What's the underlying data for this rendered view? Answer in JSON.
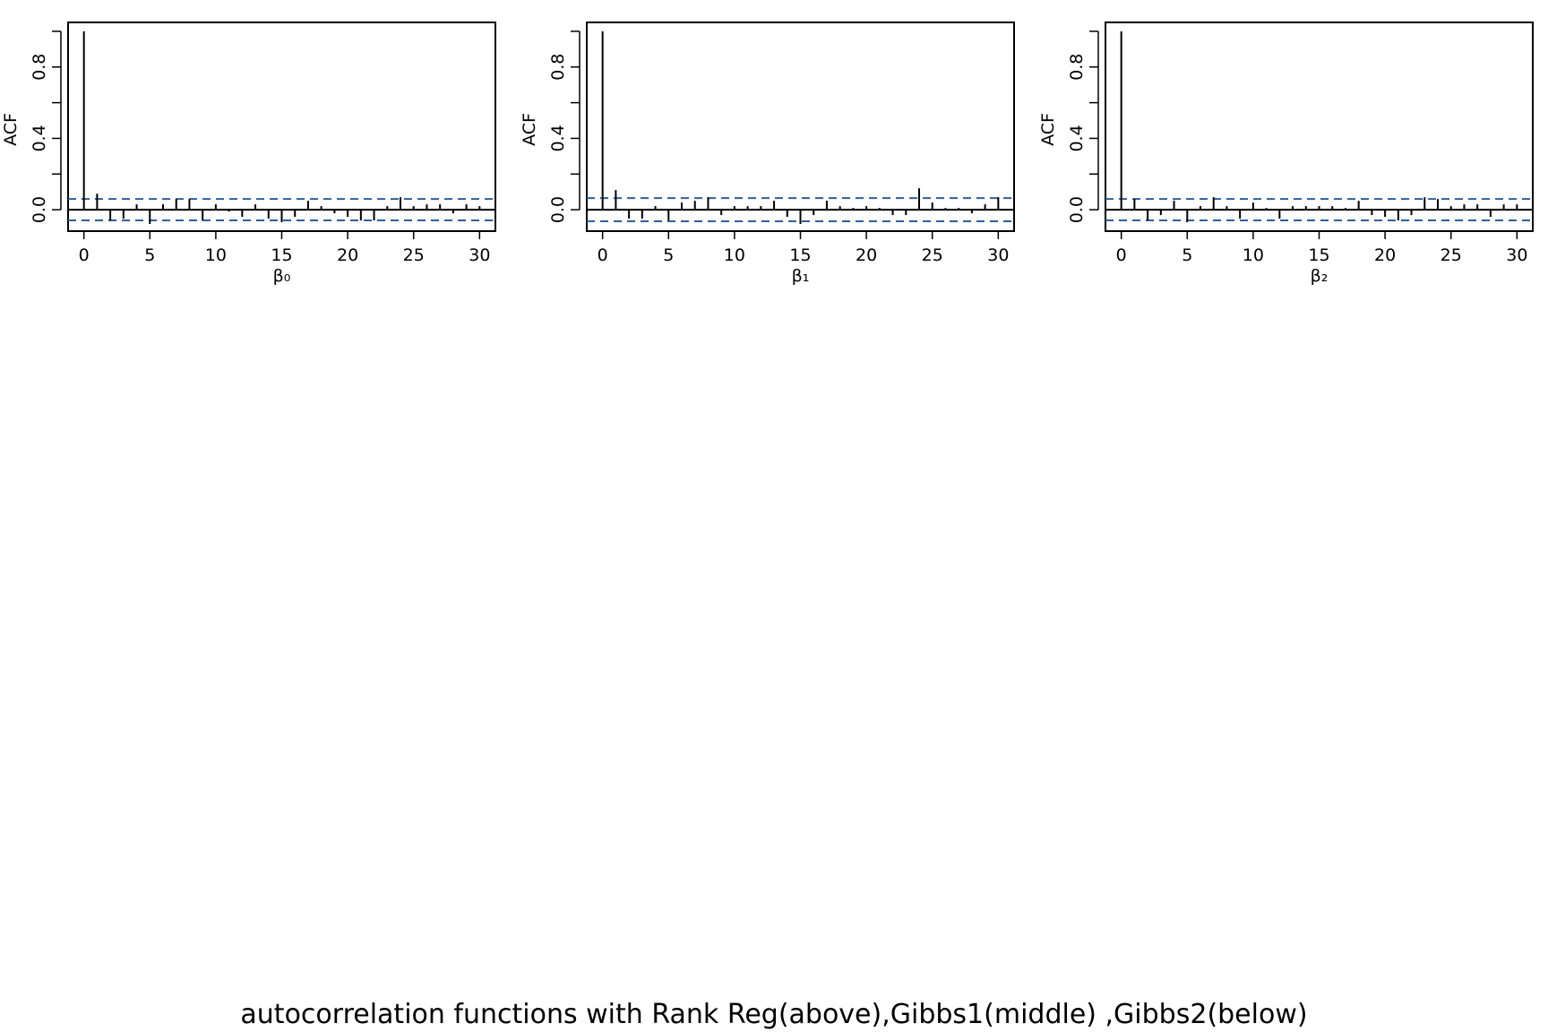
{
  "caption": "autocorrelation functions with Rank Reg(above),Gibbs1(middle) ,Gibbs2(below)",
  "colors": {
    "bar": "#000000",
    "confidence_band": "#2f5f98",
    "axis": "#000000"
  },
  "chart_data": [
    {
      "type": "bar",
      "title": "",
      "xlabel": "β₀",
      "ylabel": "ACF",
      "xlim": [
        -1.2,
        31.2
      ],
      "ylim": [
        -0.12,
        1.05
      ],
      "xticks": [
        0,
        5,
        10,
        15,
        20,
        25,
        30
      ],
      "yticks": [
        0.0,
        0.4,
        0.8
      ],
      "grid": false,
      "confidence_band": [
        -0.06,
        0.06
      ],
      "lags": [
        0,
        1,
        2,
        3,
        4,
        5,
        6,
        7,
        8,
        9,
        10,
        11,
        12,
        13,
        14,
        15,
        16,
        17,
        18,
        19,
        20,
        21,
        22,
        23,
        24,
        25,
        26,
        27,
        28,
        29,
        30
      ],
      "values": [
        1.0,
        0.09,
        -0.06,
        -0.05,
        0.03,
        -0.08,
        0.03,
        0.06,
        0.06,
        -0.06,
        0.03,
        -0.01,
        -0.04,
        0.03,
        -0.05,
        -0.07,
        -0.04,
        0.05,
        0.02,
        -0.02,
        -0.04,
        -0.06,
        -0.06,
        0.02,
        0.07,
        0.02,
        0.03,
        0.03,
        -0.02,
        0.03,
        0.02
      ]
    },
    {
      "type": "bar",
      "title": "",
      "xlabel": "β₁",
      "ylabel": "ACF",
      "xlim": [
        -1.2,
        31.2
      ],
      "ylim": [
        -0.12,
        1.05
      ],
      "xticks": [
        0,
        5,
        10,
        15,
        20,
        25,
        30
      ],
      "yticks": [
        0.0,
        0.4,
        0.8
      ],
      "grid": false,
      "confidence_band": [
        -0.065,
        0.065
      ],
      "lags": [
        0,
        1,
        2,
        3,
        4,
        5,
        6,
        7,
        8,
        9,
        10,
        11,
        12,
        13,
        14,
        15,
        16,
        17,
        18,
        19,
        20,
        21,
        22,
        23,
        24,
        25,
        26,
        27,
        28,
        29,
        30
      ],
      "values": [
        1.0,
        0.11,
        -0.05,
        -0.05,
        0.02,
        -0.06,
        0.04,
        0.05,
        0.07,
        -0.03,
        0.02,
        0.02,
        0.02,
        0.05,
        -0.04,
        -0.08,
        -0.03,
        0.05,
        0.02,
        0.01,
        0.02,
        0.01,
        -0.03,
        -0.03,
        0.12,
        0.04,
        0.01,
        0.01,
        -0.02,
        0.03,
        0.07
      ]
    },
    {
      "type": "bar",
      "title": "",
      "xlabel": "β₂",
      "ylabel": "ACF",
      "xlim": [
        -1.2,
        31.2
      ],
      "ylim": [
        -0.12,
        1.05
      ],
      "xticks": [
        0,
        5,
        10,
        15,
        20,
        25,
        30
      ],
      "yticks": [
        0.0,
        0.4,
        0.8
      ],
      "grid": false,
      "confidence_band": [
        -0.06,
        0.06
      ],
      "lags": [
        0,
        1,
        2,
        3,
        4,
        5,
        6,
        7,
        8,
        9,
        10,
        11,
        12,
        13,
        14,
        15,
        16,
        17,
        18,
        19,
        20,
        21,
        22,
        23,
        24,
        25,
        26,
        27,
        28,
        29,
        30
      ],
      "values": [
        1.0,
        0.06,
        -0.06,
        -0.03,
        0.05,
        -0.07,
        0.02,
        0.07,
        0.02,
        -0.05,
        0.04,
        0.01,
        -0.05,
        0.02,
        0.02,
        0.02,
        0.02,
        0.01,
        0.05,
        -0.03,
        -0.04,
        -0.06,
        -0.03,
        0.07,
        0.06,
        0.02,
        0.03,
        0.03,
        -0.04,
        0.03,
        0.03
      ]
    }
  ]
}
